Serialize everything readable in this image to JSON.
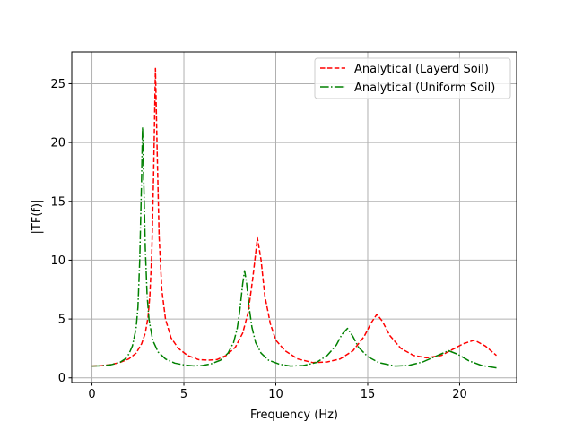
{
  "chart_data": {
    "type": "line",
    "title": "",
    "xlabel": "Frequency (Hz)",
    "ylabel": "|TF(f)|",
    "xlim": [
      -1.1,
      23.1
    ],
    "ylim": [
      -0.4,
      27.7
    ],
    "xticks": [
      0,
      5,
      10,
      15,
      20
    ],
    "yticks": [
      0,
      5,
      10,
      15,
      20,
      25
    ],
    "grid": true,
    "legend_position": "top-right",
    "series": [
      {
        "name": "Analytical (Layerd Soil)",
        "color": "#ff0000",
        "style": "dashed",
        "x": [
          0,
          0.5,
          1.0,
          1.5,
          2.0,
          2.4,
          2.7,
          2.9,
          3.05,
          3.15,
          3.25,
          3.35,
          3.45,
          3.55,
          3.65,
          3.8,
          4.0,
          4.3,
          4.7,
          5.2,
          5.8,
          6.3,
          6.8,
          7.3,
          7.8,
          8.2,
          8.5,
          8.75,
          9.0,
          9.2,
          9.4,
          9.7,
          10.0,
          10.5,
          11.2,
          12.0,
          12.8,
          13.5,
          14.2,
          14.8,
          15.2,
          15.5,
          15.8,
          16.2,
          16.8,
          17.5,
          18.2,
          19.0,
          19.6,
          20.2,
          20.8,
          21.4,
          22.0
        ],
        "y": [
          1.0,
          1.03,
          1.12,
          1.3,
          1.6,
          2.1,
          2.9,
          3.8,
          5.2,
          7.0,
          10.5,
          17.0,
          26.3,
          19.0,
          12.0,
          7.5,
          5.0,
          3.4,
          2.5,
          1.9,
          1.55,
          1.5,
          1.55,
          1.9,
          2.6,
          3.8,
          5.6,
          8.5,
          11.9,
          10.0,
          7.0,
          4.6,
          3.2,
          2.3,
          1.6,
          1.3,
          1.35,
          1.6,
          2.3,
          3.5,
          4.7,
          5.4,
          4.8,
          3.6,
          2.5,
          1.9,
          1.7,
          1.9,
          2.4,
          2.9,
          3.2,
          2.7,
          1.9
        ]
      },
      {
        "name": "Analytical (Uniform Soil)",
        "color": "#008000",
        "style": "dashdot",
        "x": [
          0,
          0.5,
          1.0,
          1.5,
          1.8,
          2.0,
          2.2,
          2.4,
          2.5,
          2.6,
          2.7,
          2.75,
          2.8,
          2.9,
          3.0,
          3.1,
          3.3,
          3.6,
          4.0,
          4.5,
          5.0,
          5.5,
          6.0,
          6.5,
          7.0,
          7.4,
          7.7,
          7.9,
          8.05,
          8.2,
          8.3,
          8.4,
          8.55,
          8.7,
          8.9,
          9.2,
          9.6,
          10.2,
          10.8,
          11.5,
          12.2,
          12.8,
          13.3,
          13.6,
          13.9,
          14.2,
          14.5,
          15.0,
          15.6,
          16.5,
          17.2,
          18.0,
          18.8,
          19.4,
          19.9,
          20.5,
          21.2,
          22.0
        ],
        "y": [
          1.0,
          1.02,
          1.1,
          1.3,
          1.6,
          2.0,
          2.7,
          4.2,
          6.0,
          10.0,
          17.0,
          21.3,
          18.0,
          11.0,
          7.0,
          5.0,
          3.2,
          2.2,
          1.6,
          1.25,
          1.1,
          1.02,
          1.05,
          1.2,
          1.5,
          2.1,
          3.0,
          4.2,
          5.8,
          8.0,
          9.1,
          8.2,
          6.0,
          4.3,
          3.0,
          2.1,
          1.5,
          1.15,
          1.0,
          1.05,
          1.3,
          1.9,
          2.8,
          3.7,
          4.2,
          3.5,
          2.6,
          1.8,
          1.3,
          1.0,
          1.05,
          1.35,
          1.9,
          2.3,
          2.0,
          1.45,
          1.05,
          0.85
        ]
      }
    ]
  }
}
